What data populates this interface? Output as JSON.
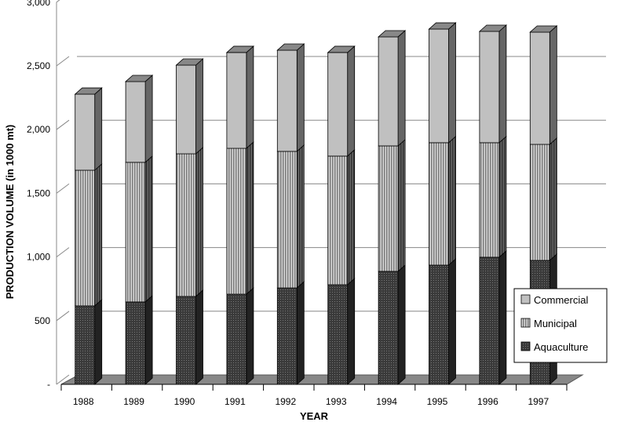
{
  "chart_data": {
    "type": "bar",
    "stacked": true,
    "three_d": true,
    "title": "",
    "xlabel": "YEAR",
    "ylabel": "PRODUCTION VOLUME (in 1000 mt)",
    "ylim": [
      0,
      3000
    ],
    "yticks": [
      0,
      500,
      1000,
      1500,
      2000,
      2500,
      3000
    ],
    "ytick_labels": [
      "-",
      "500",
      "1,000",
      "1,500",
      "2,000",
      "2,500",
      "3,000"
    ],
    "categories": [
      "1988",
      "1989",
      "1990",
      "1991",
      "1992",
      "1993",
      "1994",
      "1995",
      "1996",
      "1997"
    ],
    "series": [
      {
        "name": "Aquaculture",
        "values": [
          616,
          647,
          690,
          708,
          757,
          782,
          887,
          936,
          998,
          973
        ],
        "color": "#3a3a3a"
      },
      {
        "name": "Municipal",
        "values": [
          1065,
          1096,
          1120,
          1145,
          1072,
          1010,
          985,
          961,
          899,
          911
        ],
        "color": "#a8a8a8"
      },
      {
        "name": "Commercial",
        "values": [
          597,
          634,
          696,
          752,
          794,
          813,
          856,
          892,
          874,
          881
        ],
        "color": "#c0c0c0"
      }
    ],
    "legend_order": [
      "Commercial",
      "Municipal",
      "Aquaculture"
    ],
    "legend_position": "bottom-right",
    "grid": true
  }
}
